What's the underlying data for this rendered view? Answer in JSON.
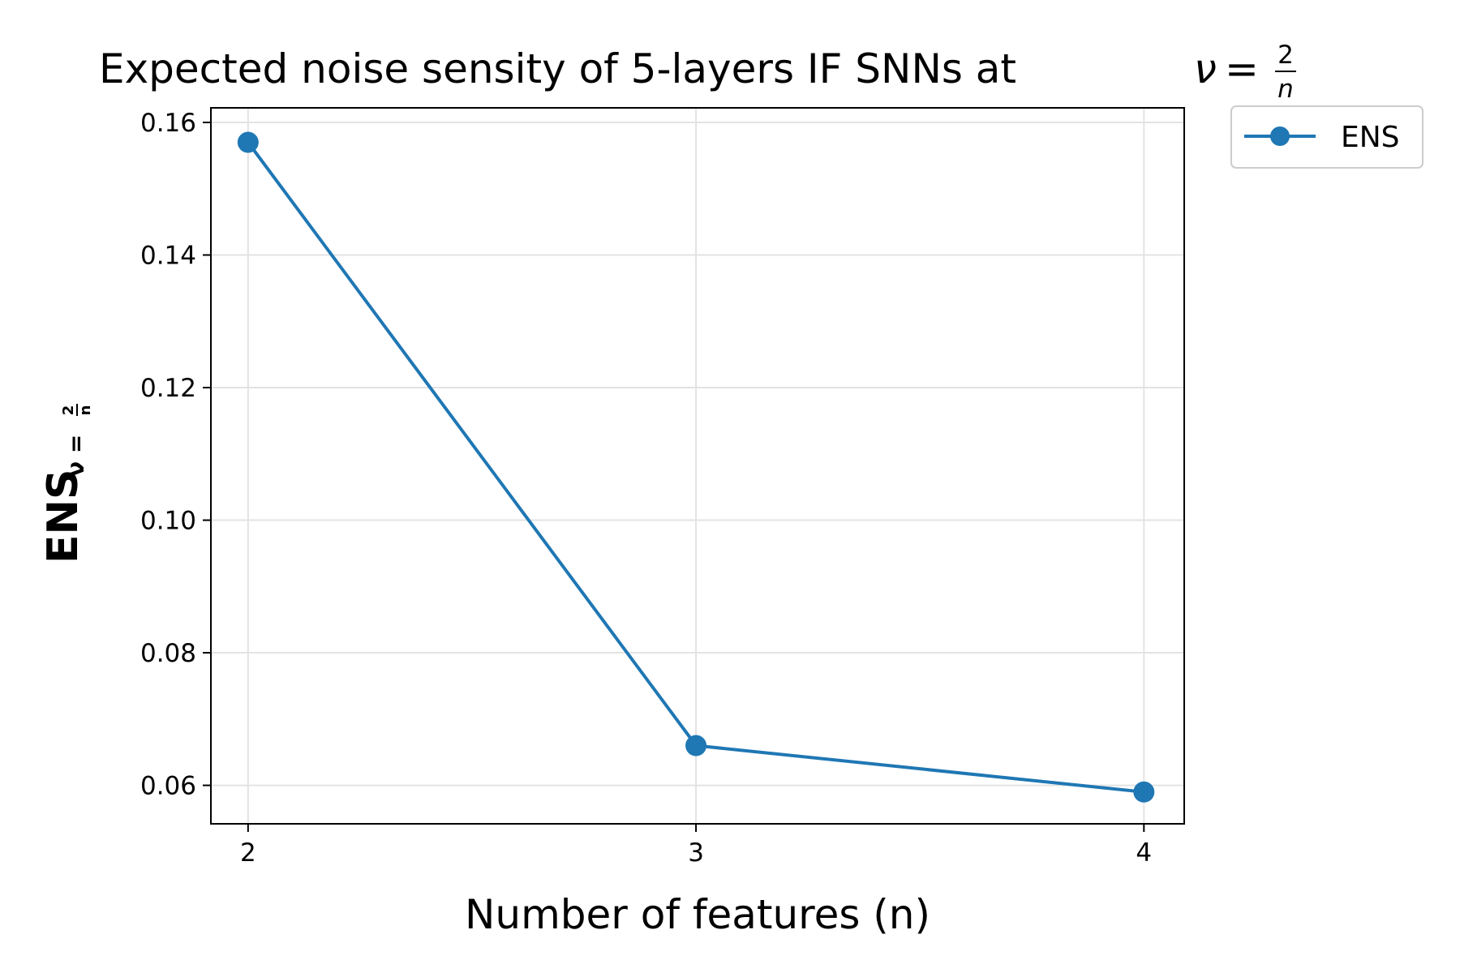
{
  "chart_data": {
    "type": "line",
    "title_text": "Expected noise sensity of 5-layers IF SNNs at ",
    "title_math": {
      "symbol": "ν",
      "equals": "=",
      "numerator": "2",
      "denominator": "n"
    },
    "xlabel": "Number of features (n)",
    "ylabel": {
      "main": "ENS",
      "subscript": "ν = ",
      "sub_numerator": "2",
      "sub_denominator": "n"
    },
    "x_ticks": [
      2,
      3,
      4
    ],
    "x_tick_labels": [
      "2",
      "3",
      "4"
    ],
    "xlim": [
      1.917,
      4.09
    ],
    "y_ticks": [
      0.06,
      0.08,
      0.1,
      0.12,
      0.14,
      0.16
    ],
    "y_tick_labels": [
      "0.06",
      "0.08",
      "0.10",
      "0.12",
      "0.14",
      "0.16"
    ],
    "ylim": [
      0.0542,
      0.1622
    ],
    "grid": true,
    "legend_position": "outside-top-right",
    "series": [
      {
        "name": "ENS",
        "color": "#1f77b4",
        "marker": "circle",
        "x": [
          2,
          3,
          4
        ],
        "y": [
          0.157,
          0.066,
          0.059
        ]
      }
    ]
  }
}
